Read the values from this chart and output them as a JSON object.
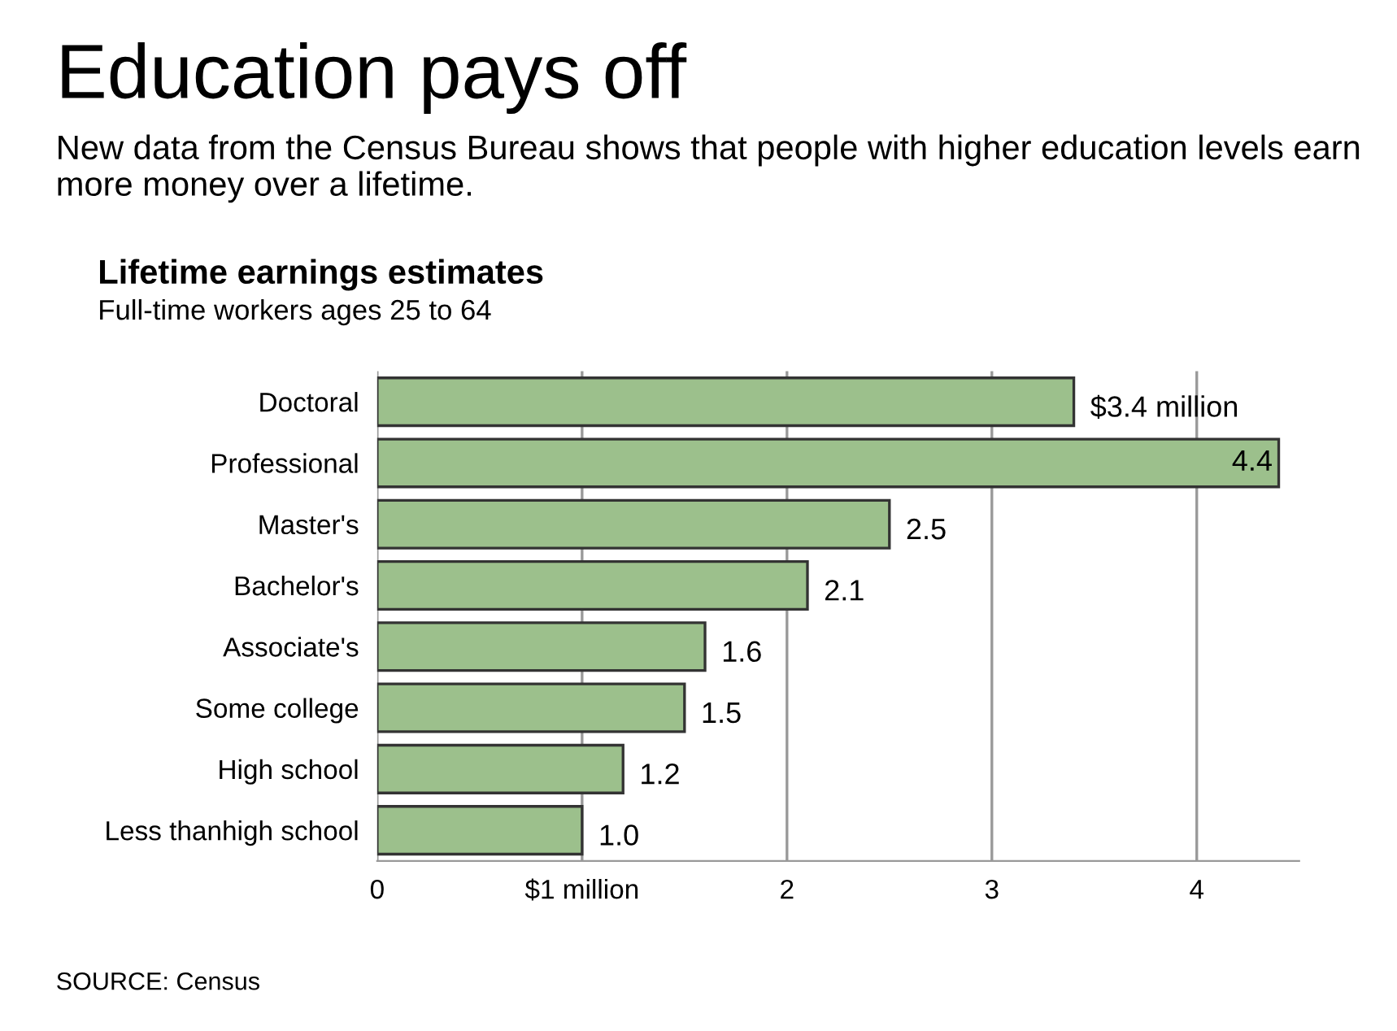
{
  "chart_data": {
    "type": "bar",
    "orientation": "horizontal",
    "title": "Education pays off",
    "subtitle": "New data from the Census Bureau shows that people with higher education levels earn more money over a lifetime.",
    "annotations": [
      "Lifetime earnings estimates",
      "Full-time workers ages 25 to 64",
      "SOURCE: Census"
    ],
    "categories": [
      "Doctoral",
      "Professional",
      "Master's",
      "Bachelor's",
      "Associate's",
      "Some college",
      "High school",
      "Less thanhigh school"
    ],
    "values": [
      3.4,
      4.4,
      2.5,
      2.1,
      1.6,
      1.5,
      1.2,
      1.0
    ],
    "value_labels": [
      "$3.4 million",
      "4.4",
      "2.5",
      "2.1",
      "1.6",
      "1.5",
      "1.2",
      "1.0"
    ],
    "color": "#9cc08c",
    "xlim": [
      0,
      4.5
    ],
    "xticks": [
      0,
      {
        "value": 1,
        "label": "$1 million"
      },
      2,
      3,
      4
    ],
    "grid": "x"
  }
}
